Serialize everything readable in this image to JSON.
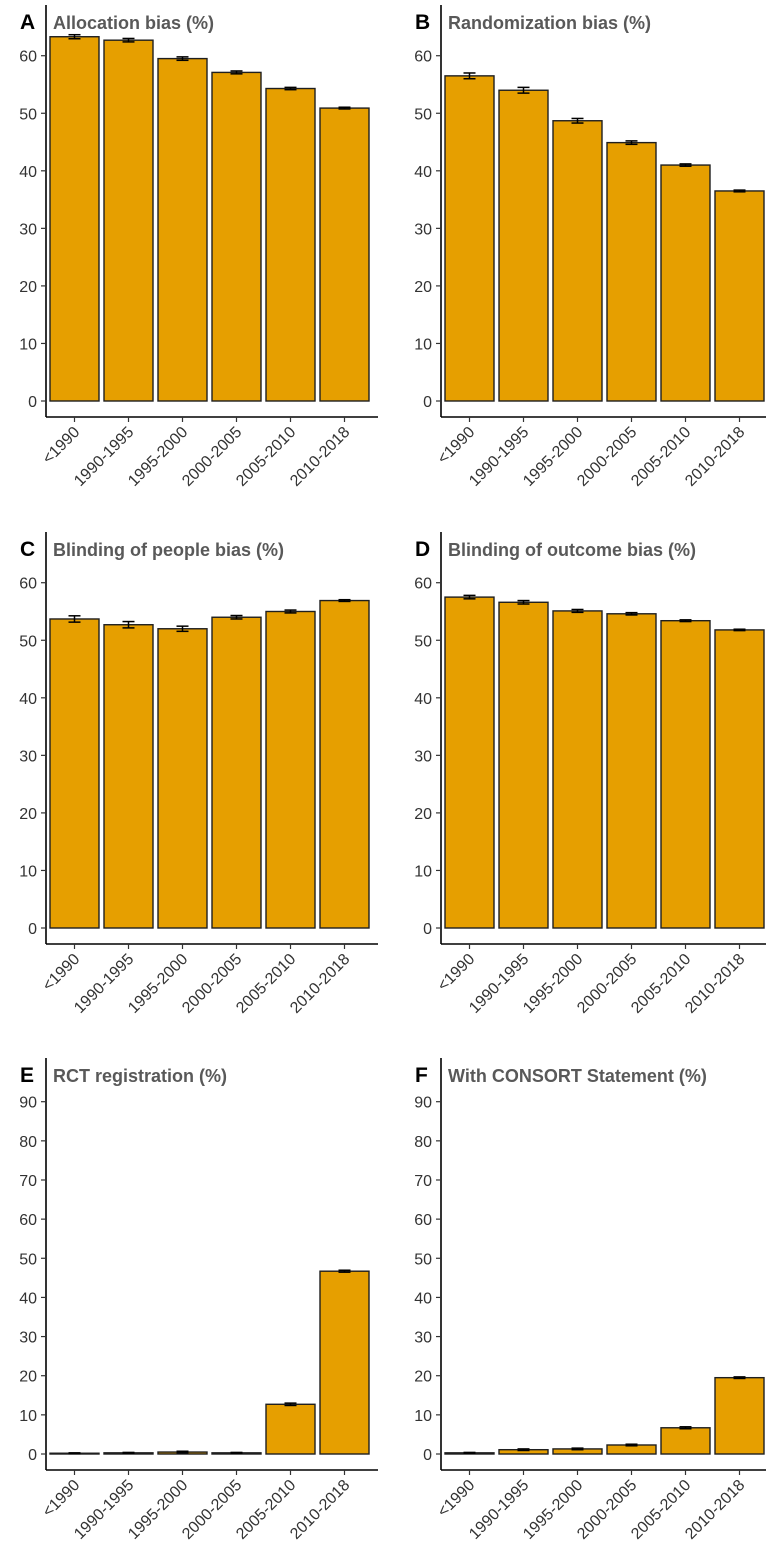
{
  "colors": {
    "bar_fill": "#e69f00",
    "bar_stroke": "#1f1f1f"
  },
  "chart_data": [
    {
      "type": "bar",
      "letter": "A",
      "title": "Allocation bias (%)",
      "categories": [
        "<1990",
        "1990-1995",
        "1995-2000",
        "2000-2005",
        "2005-2010",
        "2010-2018"
      ],
      "values": [
        63.3,
        62.7,
        59.5,
        57.1,
        54.3,
        50.9
      ],
      "errors": [
        0.35,
        0.3,
        0.3,
        0.25,
        0.2,
        0.15
      ],
      "ylim": [
        0,
        63.6
      ],
      "yticks": [
        0,
        10,
        20,
        30,
        40,
        50,
        60
      ],
      "grid": false
    },
    {
      "type": "bar",
      "letter": "B",
      "title": "Randomization bias (%)",
      "categories": [
        "<1990",
        "1990-1995",
        "1995-2000",
        "2000-2005",
        "2005-2010",
        "2010-2018"
      ],
      "values": [
        56.5,
        54.0,
        48.7,
        44.9,
        41.0,
        36.5
      ],
      "errors": [
        0.5,
        0.5,
        0.4,
        0.3,
        0.2,
        0.15
      ],
      "ylim": [
        0,
        63.6
      ],
      "yticks": [
        0,
        10,
        20,
        30,
        40,
        50,
        60
      ],
      "grid": false
    },
    {
      "type": "bar",
      "letter": "C",
      "title": "Blinding of people bias (%)",
      "categories": [
        "<1990",
        "1990-1995",
        "1995-2000",
        "2000-2005",
        "2005-2010",
        "2010-2018"
      ],
      "values": [
        53.7,
        52.7,
        52.0,
        54.0,
        55.0,
        56.9
      ],
      "errors": [
        0.55,
        0.55,
        0.45,
        0.3,
        0.25,
        0.15
      ],
      "ylim": [
        0,
        63.6
      ],
      "yticks": [
        0,
        10,
        20,
        30,
        40,
        50,
        60
      ],
      "grid": false
    },
    {
      "type": "bar",
      "letter": "D",
      "title": "Blinding of outcome bias (%)",
      "categories": [
        "<1990",
        "1990-1995",
        "1995-2000",
        "2000-2005",
        "2005-2010",
        "2010-2018"
      ],
      "values": [
        57.5,
        56.6,
        55.1,
        54.6,
        53.4,
        51.8
      ],
      "errors": [
        0.3,
        0.3,
        0.25,
        0.2,
        0.15,
        0.12
      ],
      "ylim": [
        0,
        63.6
      ],
      "yticks": [
        0,
        10,
        20,
        30,
        40,
        50,
        60
      ],
      "grid": false
    },
    {
      "type": "bar",
      "letter": "E",
      "title": "RCT registration (%)",
      "categories": [
        "<1990",
        "1990-1995",
        "1995-2000",
        "2000-2005",
        "2005-2010",
        "2010-2018"
      ],
      "values": [
        0.2,
        0.3,
        0.5,
        0.3,
        12.7,
        46.7
      ],
      "errors": [
        0.1,
        0.1,
        0.2,
        0.1,
        0.3,
        0.25
      ],
      "ylim": [
        0,
        93.5
      ],
      "yticks": [
        0,
        10,
        20,
        30,
        40,
        50,
        60,
        70,
        80,
        90
      ],
      "grid": false
    },
    {
      "type": "bar",
      "letter": "F",
      "title": "With CONSORT Statement (%)",
      "categories": [
        "<1990",
        "1990-1995",
        "1995-2000",
        "2000-2005",
        "2005-2010",
        "2010-2018"
      ],
      "values": [
        0.3,
        1.1,
        1.3,
        2.3,
        6.7,
        19.5
      ],
      "errors": [
        0.1,
        0.2,
        0.2,
        0.2,
        0.25,
        0.2
      ],
      "ylim": [
        0,
        93.5
      ],
      "yticks": [
        0,
        10,
        20,
        30,
        40,
        50,
        60,
        70,
        80,
        90
      ],
      "grid": false
    }
  ]
}
